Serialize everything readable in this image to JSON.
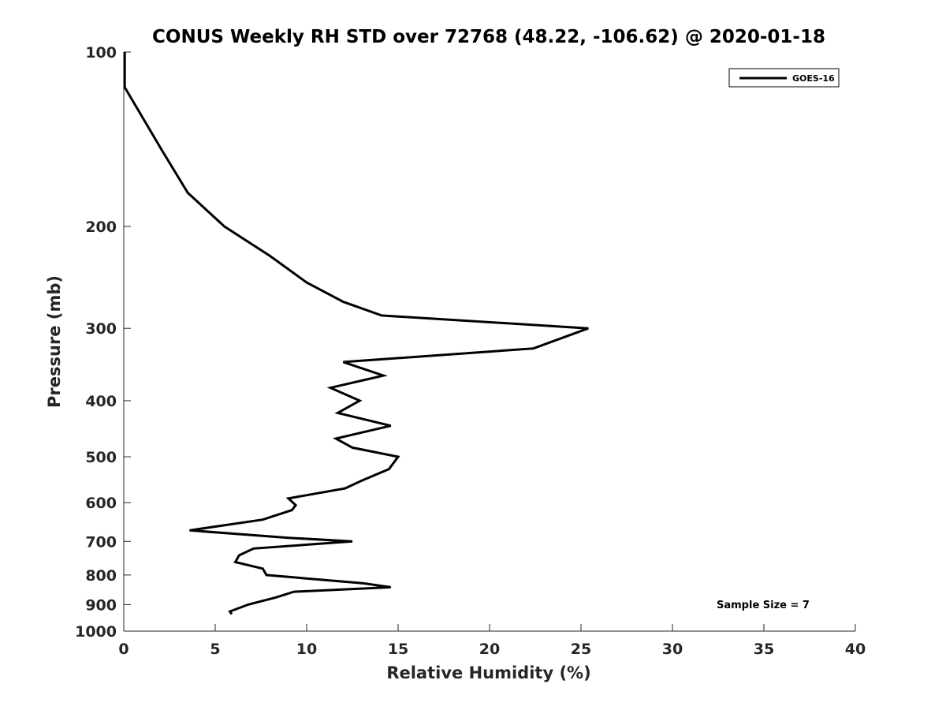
{
  "chart_data": {
    "type": "line",
    "title": "CONUS Weekly RH STD over 72768 (48.22, -106.62) @ 2020-01-18",
    "xlabel": "Relative Humidity (%)",
    "ylabel": "Pressure (mb)",
    "xlim": [
      0,
      40
    ],
    "ylim": [
      100,
      1000
    ],
    "y_scale": "log",
    "y_reversed": true,
    "x_ticks": [
      0,
      5,
      10,
      15,
      20,
      25,
      30,
      35,
      40
    ],
    "y_ticks": [
      100,
      200,
      300,
      400,
      500,
      600,
      700,
      800,
      900,
      1000
    ],
    "grid": false,
    "legend_position": "top-right",
    "series": [
      {
        "name": "GOES-16",
        "color": "#000000",
        "points": [
          [
            0.05,
            100
          ],
          [
            0.05,
            115
          ],
          [
            2.1,
            148
          ],
          [
            3.5,
            175
          ],
          [
            5.5,
            200
          ],
          [
            8.0,
            225
          ],
          [
            10.0,
            250
          ],
          [
            12.0,
            270
          ],
          [
            14.1,
            285
          ],
          [
            25.4,
            300
          ],
          [
            22.4,
            325
          ],
          [
            12.0,
            343
          ],
          [
            14.2,
            362
          ],
          [
            11.3,
            380
          ],
          [
            12.9,
            400
          ],
          [
            11.7,
            420
          ],
          [
            14.6,
            442
          ],
          [
            11.6,
            465
          ],
          [
            12.5,
            482
          ],
          [
            15.0,
            500
          ],
          [
            14.5,
            525
          ],
          [
            13.0,
            550
          ],
          [
            12.1,
            567
          ],
          [
            9.0,
            590
          ],
          [
            9.4,
            606
          ],
          [
            9.2,
            618
          ],
          [
            7.6,
            642
          ],
          [
            3.6,
            670
          ],
          [
            9.0,
            690
          ],
          [
            12.5,
            700
          ],
          [
            7.1,
            720
          ],
          [
            6.3,
            740
          ],
          [
            6.1,
            760
          ],
          [
            7.6,
            780
          ],
          [
            7.8,
            800
          ],
          [
            13.1,
            827
          ],
          [
            14.6,
            840
          ],
          [
            9.3,
            855
          ],
          [
            8.3,
            875
          ],
          [
            6.8,
            900
          ],
          [
            5.8,
            925
          ],
          [
            5.9,
            935
          ]
        ]
      }
    ],
    "annotation": "Sample Size = 7"
  }
}
